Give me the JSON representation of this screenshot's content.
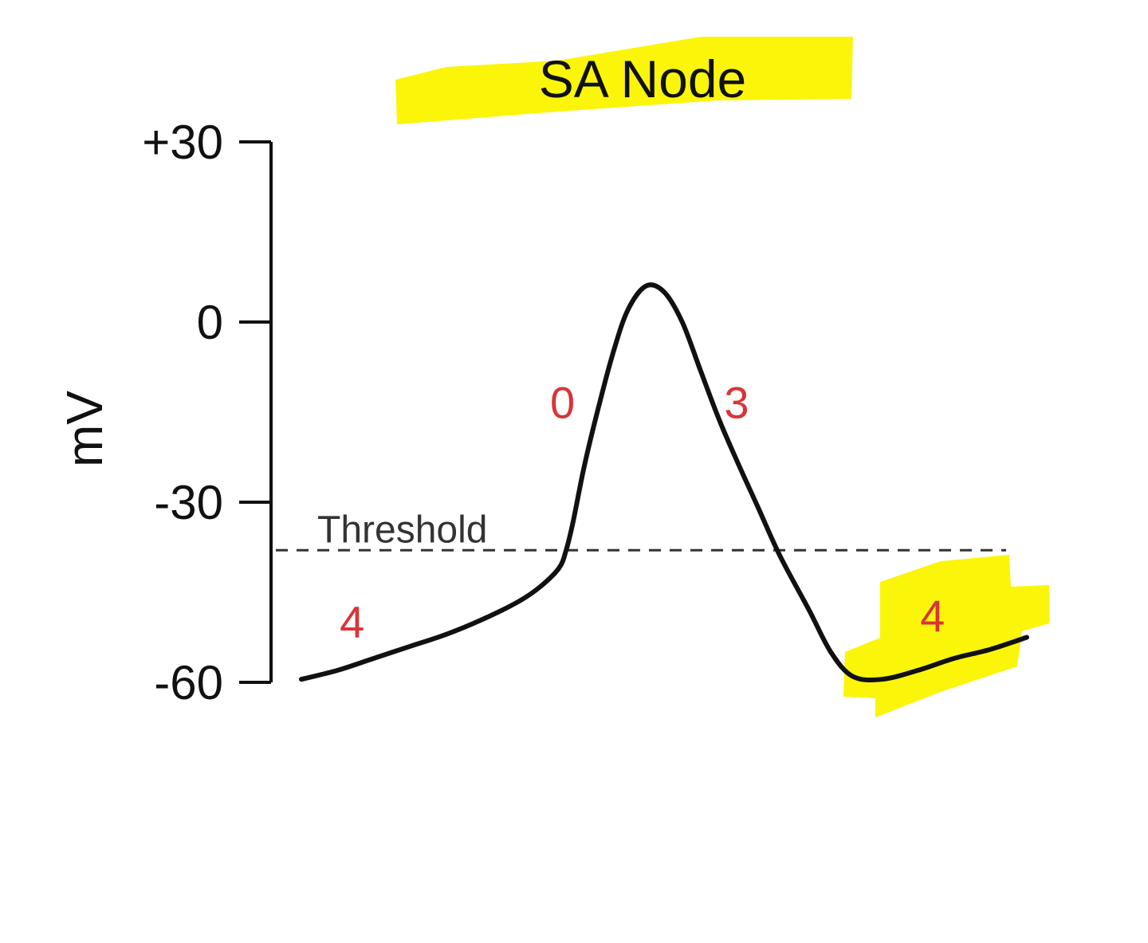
{
  "chart_data": {
    "type": "line",
    "title": "SA Node",
    "xlabel": "",
    "ylabel": "mV",
    "ylim": [
      -60,
      30
    ],
    "yticks": [
      {
        "value": 30,
        "label": "+30"
      },
      {
        "value": 0,
        "label": "0"
      },
      {
        "value": -30,
        "label": "-30"
      },
      {
        "value": -60,
        "label": "-60"
      }
    ],
    "grid": false,
    "threshold": {
      "value": -38,
      "label": "Threshold"
    },
    "series": [
      {
        "points": [
          [
            0.0,
            -59.5
          ],
          [
            0.05,
            -58.0
          ],
          [
            0.1,
            -56.0
          ],
          [
            0.15,
            -54.0
          ],
          [
            0.2,
            -52.0
          ],
          [
            0.25,
            -49.5
          ],
          [
            0.3,
            -46.5
          ],
          [
            0.33,
            -44.0
          ],
          [
            0.355,
            -41.0
          ],
          [
            0.365,
            -38.0
          ],
          [
            0.375,
            -33.0
          ],
          [
            0.39,
            -24.0
          ],
          [
            0.41,
            -14.0
          ],
          [
            0.43,
            -5.0
          ],
          [
            0.45,
            2.0
          ],
          [
            0.475,
            6.0
          ],
          [
            0.5,
            5.0
          ],
          [
            0.525,
            0.0
          ],
          [
            0.55,
            -8.0
          ],
          [
            0.575,
            -16.0
          ],
          [
            0.6,
            -23.0
          ],
          [
            0.63,
            -31.0
          ],
          [
            0.66,
            -39.0
          ],
          [
            0.7,
            -48.0
          ],
          [
            0.73,
            -55.0
          ],
          [
            0.76,
            -59.0
          ],
          [
            0.8,
            -59.5
          ],
          [
            0.85,
            -58.0
          ],
          [
            0.9,
            -56.0
          ],
          [
            0.95,
            -54.5
          ],
          [
            1.0,
            -52.5
          ]
        ]
      }
    ],
    "phase_labels": [
      {
        "text": "4",
        "x": 0.07,
        "y": -52.5
      },
      {
        "text": "0",
        "x": 0.36,
        "y": -16
      },
      {
        "text": "3",
        "x": 0.6,
        "y": -16
      },
      {
        "text": "4",
        "x": 0.87,
        "y": -51.5
      }
    ],
    "colors": {
      "line": "#111111",
      "axis": "#111111",
      "threshold": "#333333",
      "phase_label": "#d9343a",
      "highlight": "#fbf50a"
    }
  }
}
